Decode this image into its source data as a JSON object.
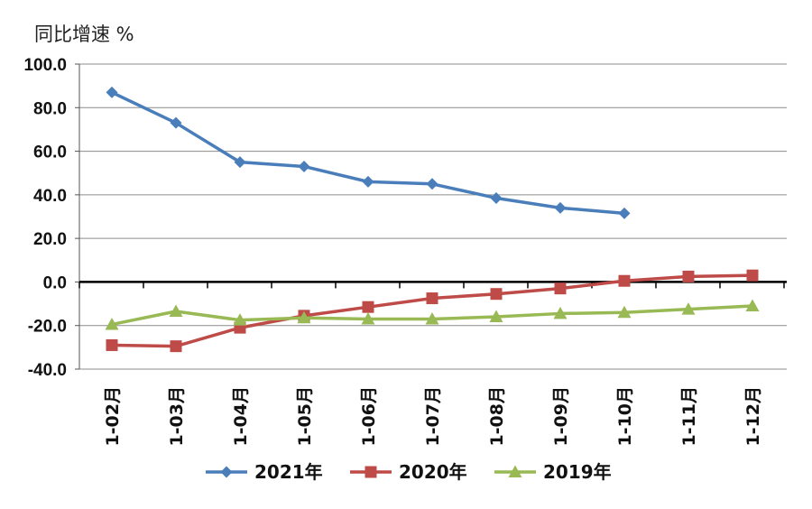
{
  "chart_data": {
    "type": "line",
    "ylabel": "同比增速 %",
    "xlabel": "",
    "ylim": [
      -40,
      100
    ],
    "yticks": [
      100.0,
      80.0,
      60.0,
      40.0,
      20.0,
      0.0,
      -20.0,
      -40.0
    ],
    "ytick_labels": [
      "100.0",
      "80.0",
      "60.0",
      "40.0",
      "20.0",
      "0.0",
      "-20.0",
      "-40.0"
    ],
    "grid": true,
    "legend_position": "bottom",
    "categories": [
      "1-02月",
      "1-03月",
      "1-04月",
      "1-05月",
      "1-06月",
      "1-07月",
      "1-08月",
      "1-09月",
      "1-10月",
      "1-11月",
      "1-12月"
    ],
    "series": [
      {
        "name": "2021年",
        "color": "#4a7ebb",
        "marker": "diamond",
        "values": [
          87.0,
          73.0,
          55.0,
          53.0,
          46.0,
          45.0,
          38.5,
          34.0,
          31.5,
          null,
          null
        ]
      },
      {
        "name": "2020年",
        "color": "#be4b48",
        "marker": "square",
        "values": [
          -29.0,
          -29.5,
          -21.0,
          -15.5,
          -11.5,
          -7.5,
          -5.5,
          -3.0,
          0.5,
          2.5,
          3.0
        ]
      },
      {
        "name": "2019年",
        "color": "#98b954",
        "marker": "triangle",
        "values": [
          -19.5,
          -13.5,
          -17.5,
          -16.5,
          -17.0,
          -17.0,
          -16.0,
          -14.5,
          -14.0,
          -12.5,
          -11.0
        ]
      }
    ]
  }
}
